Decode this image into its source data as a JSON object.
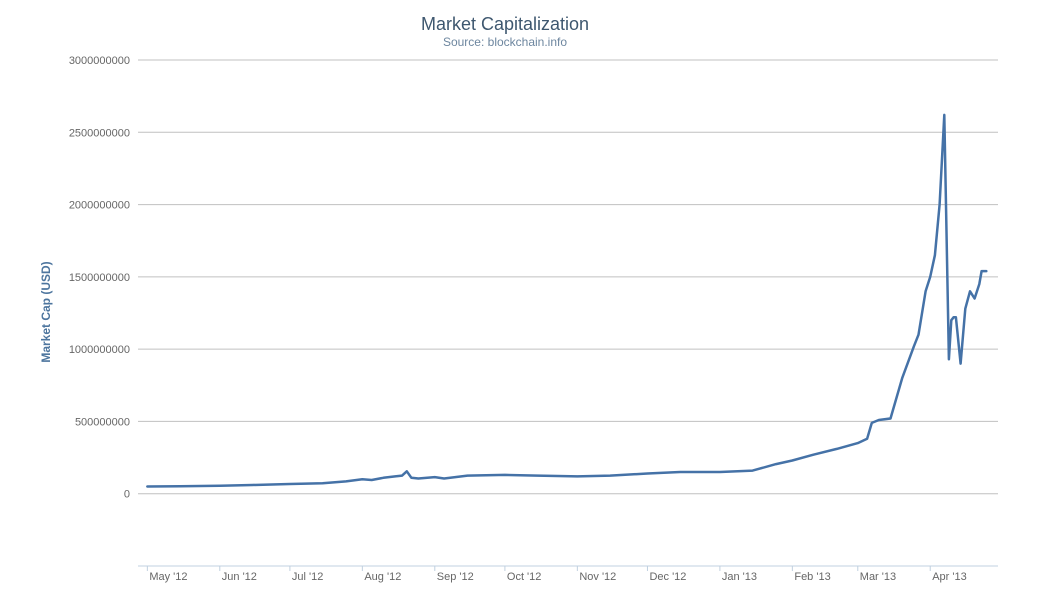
{
  "chart_data": {
    "type": "line",
    "title": "Market Capitalization",
    "subtitle": "Source: blockchain.info",
    "ylabel": "Market Cap (USD)",
    "ylim": [
      -500000000,
      3000000000
    ],
    "yticks": [
      0,
      500000000,
      1000000000,
      1500000000,
      2000000000,
      2500000000,
      3000000000
    ],
    "ytick_labels": [
      "0",
      "500000000",
      "1000000000",
      "1500000000",
      "2000000000",
      "2500000000",
      "3000000000"
    ],
    "xlim": [
      "2012-04-27",
      "2013-04-30"
    ],
    "xticks": [
      "2012-05-01",
      "2012-06-01",
      "2012-07-01",
      "2012-08-01",
      "2012-09-01",
      "2012-10-01",
      "2012-11-01",
      "2012-12-01",
      "2013-01-01",
      "2013-02-01",
      "2013-03-01",
      "2013-04-01"
    ],
    "xtick_labels": [
      "May '12",
      "Jun '12",
      "Jul '12",
      "Aug '12",
      "Sep '12",
      "Oct '12",
      "Nov '12",
      "Dec '12",
      "Jan '13",
      "Feb '13",
      "Mar '13",
      "Apr '13"
    ],
    "grid": true,
    "legend": false,
    "series": [
      {
        "color": "#4572a7",
        "x": [
          "2012-05-01",
          "2012-05-15",
          "2012-06-01",
          "2012-06-15",
          "2012-07-01",
          "2012-07-15",
          "2012-07-25",
          "2012-08-01",
          "2012-08-05",
          "2012-08-10",
          "2012-08-15",
          "2012-08-18",
          "2012-08-20",
          "2012-08-22",
          "2012-08-25",
          "2012-09-01",
          "2012-09-05",
          "2012-09-15",
          "2012-10-01",
          "2012-10-15",
          "2012-11-01",
          "2012-11-15",
          "2012-12-01",
          "2012-12-15",
          "2013-01-01",
          "2013-01-15",
          "2013-01-25",
          "2013-02-01",
          "2013-02-10",
          "2013-02-20",
          "2013-03-01",
          "2013-03-05",
          "2013-03-07",
          "2013-03-10",
          "2013-03-15",
          "2013-03-20",
          "2013-03-25",
          "2013-03-27",
          "2013-03-30",
          "2013-04-01",
          "2013-04-03",
          "2013-04-05",
          "2013-04-07",
          "2013-04-09",
          "2013-04-10",
          "2013-04-11",
          "2013-04-12",
          "2013-04-14",
          "2013-04-16",
          "2013-04-18",
          "2013-04-20",
          "2013-04-22",
          "2013-04-23",
          "2013-04-25"
        ],
        "y": [
          50000000,
          51000000,
          55000000,
          60000000,
          67000000,
          72000000,
          85000000,
          100000000,
          95000000,
          110000000,
          120000000,
          125000000,
          155000000,
          110000000,
          105000000,
          115000000,
          105000000,
          125000000,
          130000000,
          125000000,
          120000000,
          125000000,
          140000000,
          150000000,
          150000000,
          160000000,
          205000000,
          230000000,
          270000000,
          310000000,
          350000000,
          380000000,
          490000000,
          510000000,
          520000000,
          800000000,
          1020000000,
          1100000000,
          1400000000,
          1500000000,
          1650000000,
          2000000000,
          2620000000,
          930000000,
          1200000000,
          1220000000,
          1220000000,
          900000000,
          1280000000,
          1400000000,
          1350000000,
          1450000000,
          1540000000,
          1540000000
        ]
      }
    ]
  }
}
